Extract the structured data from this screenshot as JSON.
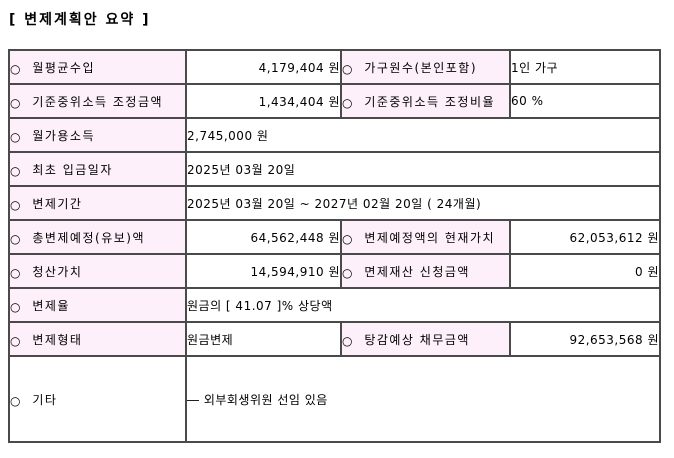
{
  "page": {
    "title": "[ 변제계획안 요약 ]"
  },
  "bullet": "○",
  "colors": {
    "label_cell_bg": "#fdf0fa",
    "value_cell_bg": "#ffffff",
    "border": "#4a4a4a",
    "text": "#000000"
  },
  "table": {
    "rows": [
      {
        "l1": "월평균수입",
        "v1": "4,179,404 원",
        "l2": "가구원수(본인포함)",
        "v2": "1인 가구"
      },
      {
        "l1": "기준중위소득 조정금액",
        "v1": "1,434,404 원",
        "l2": "기준중위소득 조정비율",
        "v2": "60 %"
      },
      {
        "l1": "월가용소득",
        "v1": "2,745,000 원"
      },
      {
        "l1": "최초 입금일자",
        "v1": "2025년 03월 20일"
      },
      {
        "l1": "변제기간",
        "v1": "2025년 03월 20일 ~ 2027년 02월 20일 ( 24개월)"
      },
      {
        "l1": "총변제예정(유보)액",
        "v1": "64,562,448 원",
        "l2": "변제예정액의 현재가치",
        "v2": "62,053,612 원"
      },
      {
        "l1": "청산가치",
        "v1": "14,594,910 원",
        "l2": "면제재산 신청금액",
        "v2": "0 원"
      },
      {
        "l1": "변제율",
        "v1": "원금의 [ 41.07 ]% 상당액"
      },
      {
        "l1": "변제형태",
        "v1": "원금변제",
        "l2": "탕감예상 채무금액",
        "v2": "92,653,568 원"
      },
      {
        "l1": "기타",
        "v1": "― 외부회생위원 선임 있음"
      }
    ]
  }
}
